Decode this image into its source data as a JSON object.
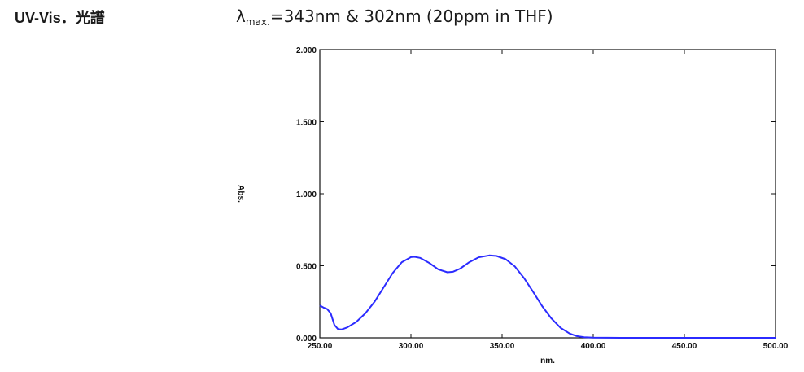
{
  "header": {
    "heading": "UV-Vis．光譜",
    "lambda_symbol": "λ",
    "lambda_sub": "max.",
    "lambda_rest": "=343nm & 302nm (20ppm in THF)"
  },
  "chart_data": {
    "type": "line",
    "title": "",
    "xlabel": "nm.",
    "ylabel": "Abs.",
    "xlim": [
      250,
      500
    ],
    "ylim": [
      0,
      2
    ],
    "x_ticks": [
      "250.00",
      "300.00",
      "350.00",
      "400.00",
      "450.00",
      "500.00"
    ],
    "y_ticks": [
      "0.000",
      "0.500",
      "1.000",
      "1.500",
      "2.000"
    ],
    "grid": false,
    "series": [
      {
        "color": "#2b2bff",
        "points": [
          [
            250,
            0.225
          ],
          [
            252,
            0.21
          ],
          [
            254,
            0.2
          ],
          [
            256,
            0.17
          ],
          [
            258,
            0.09
          ],
          [
            260,
            0.06
          ],
          [
            262,
            0.058
          ],
          [
            265,
            0.072
          ],
          [
            270,
            0.11
          ],
          [
            275,
            0.17
          ],
          [
            280,
            0.25
          ],
          [
            285,
            0.35
          ],
          [
            290,
            0.45
          ],
          [
            295,
            0.525
          ],
          [
            300,
            0.56
          ],
          [
            302,
            0.562
          ],
          [
            305,
            0.555
          ],
          [
            310,
            0.52
          ],
          [
            315,
            0.475
          ],
          [
            320,
            0.455
          ],
          [
            323,
            0.458
          ],
          [
            327,
            0.48
          ],
          [
            332,
            0.525
          ],
          [
            337,
            0.558
          ],
          [
            343,
            0.572
          ],
          [
            347,
            0.568
          ],
          [
            352,
            0.545
          ],
          [
            357,
            0.495
          ],
          [
            362,
            0.415
          ],
          [
            367,
            0.32
          ],
          [
            372,
            0.22
          ],
          [
            377,
            0.135
          ],
          [
            382,
            0.07
          ],
          [
            387,
            0.03
          ],
          [
            391,
            0.012
          ],
          [
            395,
            0.004
          ],
          [
            400,
            0.001
          ],
          [
            420,
            0.0
          ],
          [
            450,
            0.0
          ],
          [
            480,
            0.0
          ],
          [
            500,
            0.0
          ]
        ]
      }
    ]
  }
}
